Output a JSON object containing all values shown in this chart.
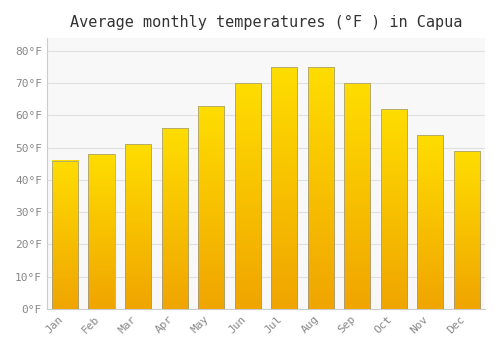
{
  "title": "Average monthly temperatures (°F ) in Capua",
  "months": [
    "Jan",
    "Feb",
    "Mar",
    "Apr",
    "May",
    "Jun",
    "Jul",
    "Aug",
    "Sep",
    "Oct",
    "Nov",
    "Dec"
  ],
  "values": [
    46,
    48,
    51,
    56,
    63,
    70,
    75,
    75,
    70,
    62,
    54,
    49
  ],
  "bar_color_bottom": "#F0A500",
  "bar_color_top": "#FFDD00",
  "bar_edge_color": "#999999",
  "background_color": "#ffffff",
  "plot_bg_color": "#f8f8f8",
  "grid_color": "#e0e0e0",
  "yticks": [
    0,
    10,
    20,
    30,
    40,
    50,
    60,
    70,
    80
  ],
  "ylim": [
    0,
    84
  ],
  "title_fontsize": 11,
  "tick_fontsize": 8,
  "tick_color": "#888888",
  "title_color": "#333333",
  "bar_width": 0.72
}
